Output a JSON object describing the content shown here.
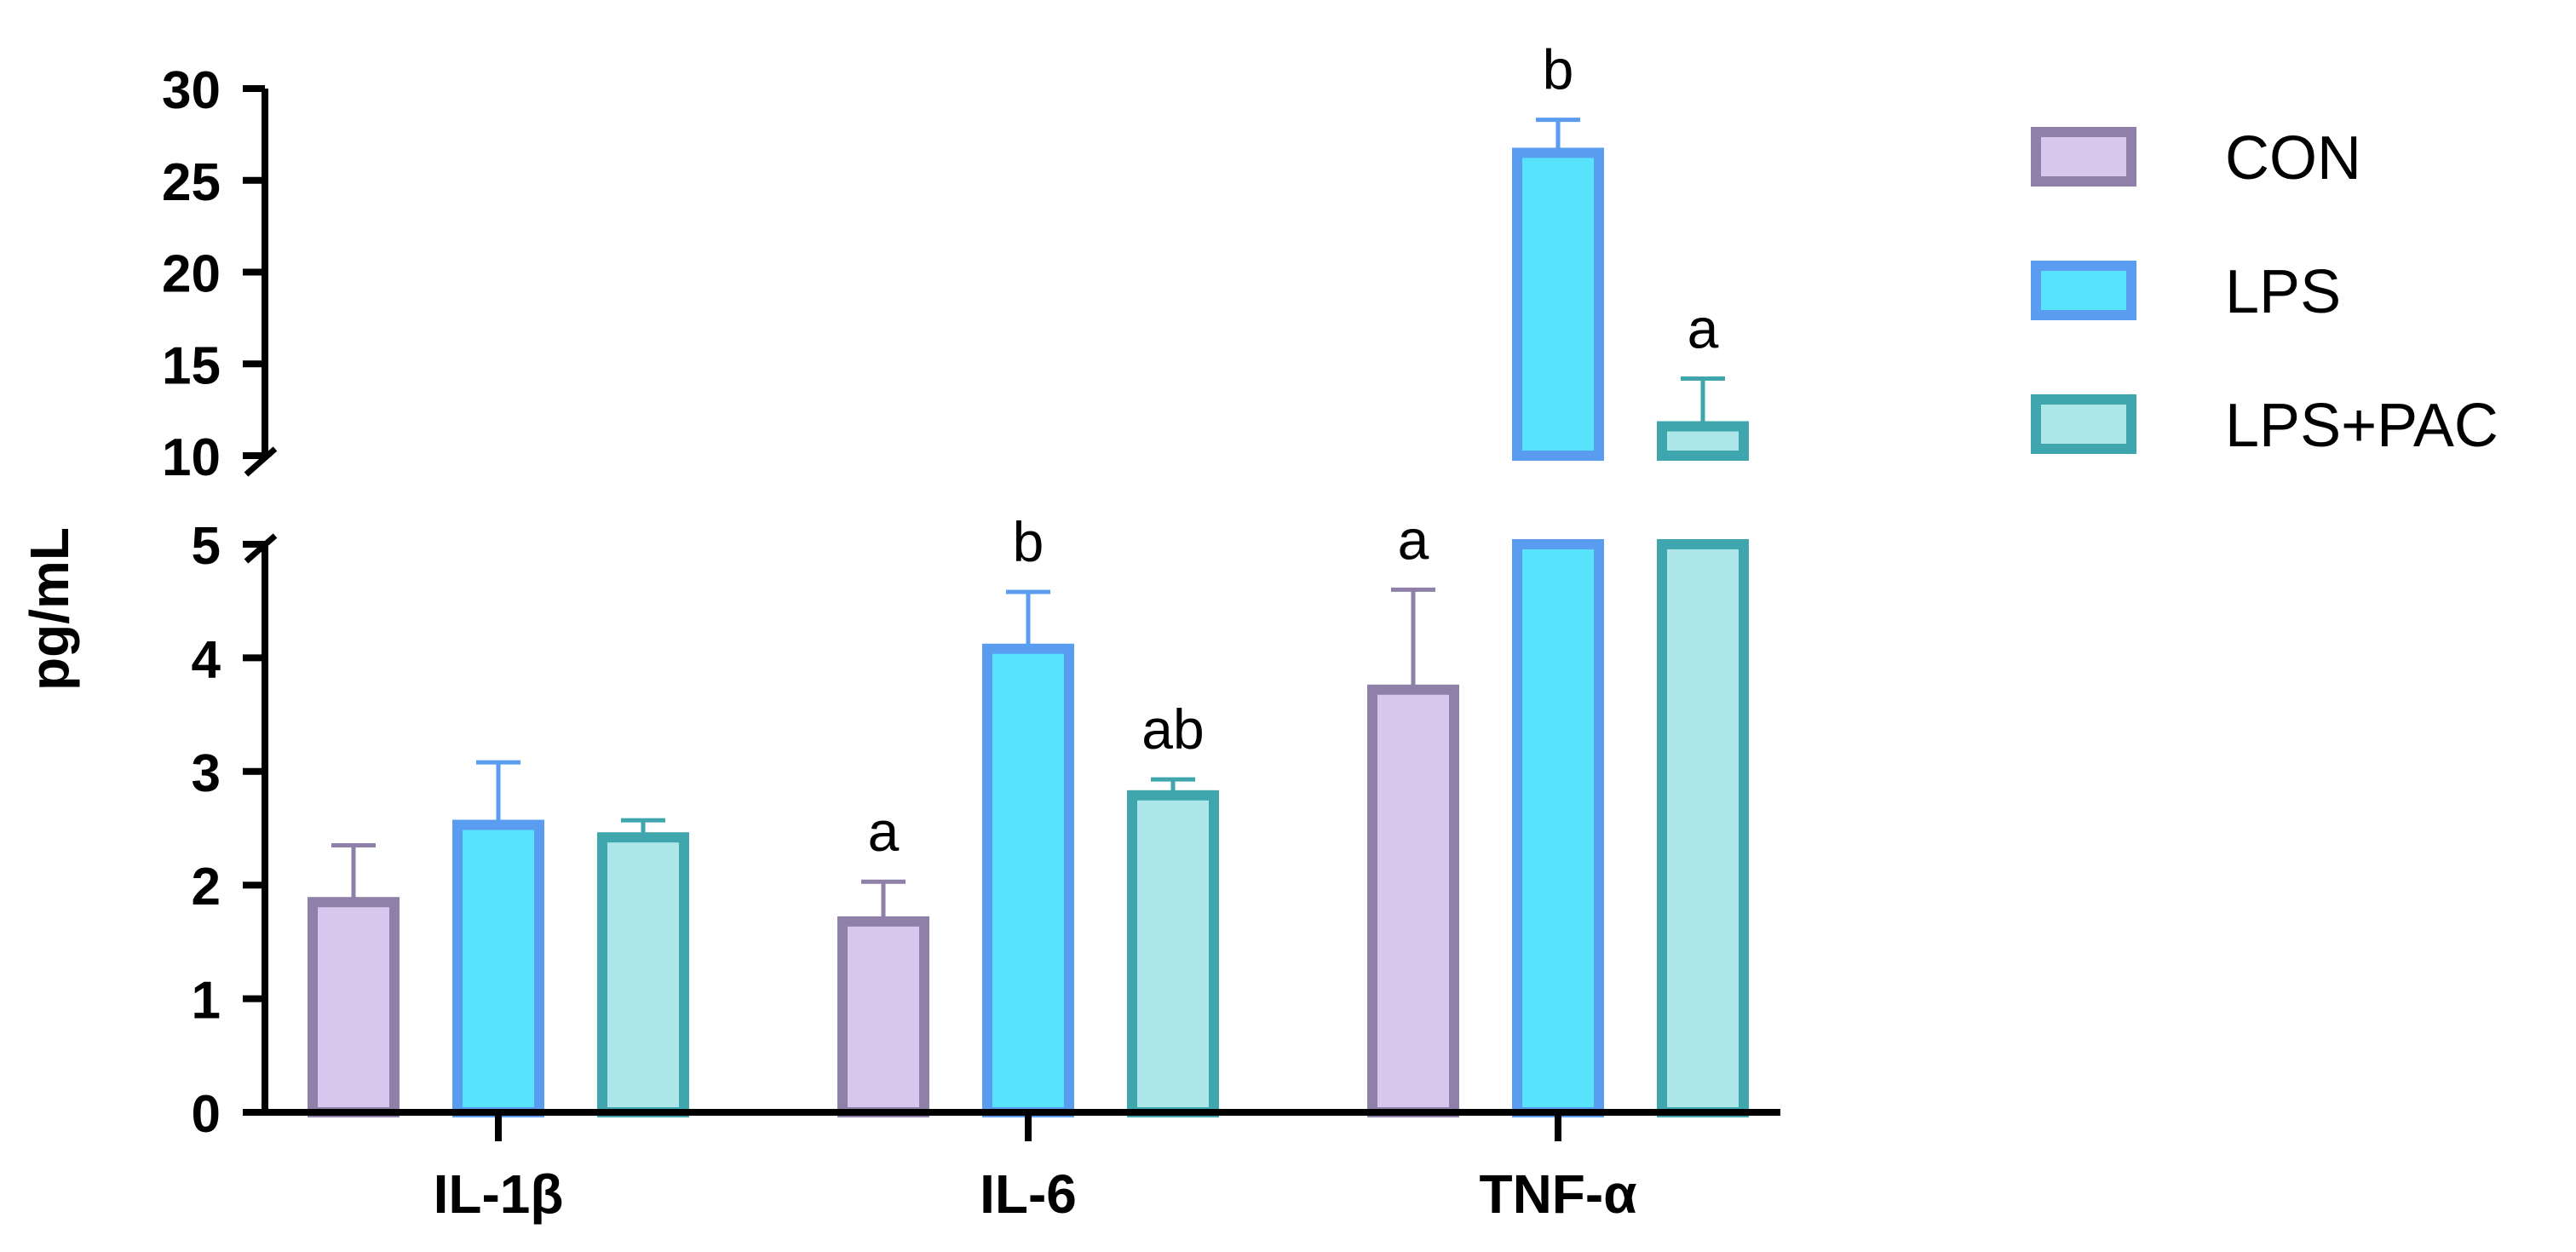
{
  "chart_data": {
    "type": "bar",
    "title": "",
    "xlabel": "",
    "ylabel": "pg/mL",
    "categories": [
      "IL-1β",
      "IL-6",
      "TNF-α"
    ],
    "series": [
      {
        "name": "CON",
        "values": [
          1.85,
          1.68,
          3.72
        ],
        "errors": [
          0.5,
          0.35,
          0.88
        ],
        "letters": [
          "",
          "a",
          "a"
        ],
        "fill": "#d8c7ec",
        "stroke": "#8e80a8"
      },
      {
        "name": "LPS",
        "values": [
          2.53,
          4.08,
          26.5
        ],
        "errors": [
          0.55,
          0.5,
          1.8
        ],
        "letters": [
          "",
          "b",
          "b"
        ],
        "fill": "#56e3fb",
        "stroke": "#5a9df0"
      },
      {
        "name": "LPS+PAC",
        "values": [
          2.42,
          2.79,
          11.6
        ],
        "errors": [
          0.15,
          0.14,
          2.6
        ],
        "letters": [
          "",
          "ab",
          "a"
        ],
        "fill": "#ace6e8",
        "stroke": "#3fa6ad"
      }
    ],
    "ylim_lower": [
      0,
      5
    ],
    "ylim_upper": [
      10,
      30
    ],
    "axis_break": [
      5,
      10
    ],
    "yticks_lower": [
      "0",
      "1",
      "2",
      "3",
      "4",
      "5"
    ],
    "yticks_upper": [
      "10",
      "15",
      "20",
      "25",
      "30"
    ],
    "legend": [
      "CON",
      "LPS",
      "LPS+PAC"
    ],
    "legend_position": "right"
  }
}
